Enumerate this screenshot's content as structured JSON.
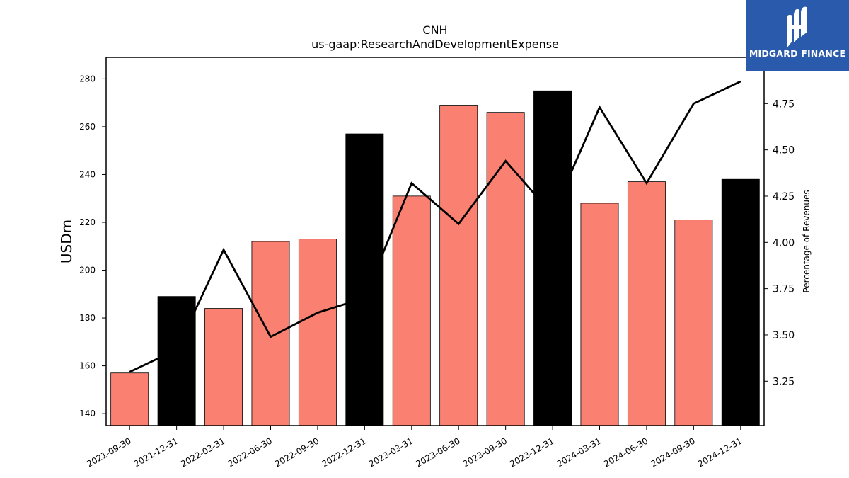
{
  "chart_data": {
    "type": "bar",
    "title": "CNH",
    "subtitle": "us-gaap:ResearchAndDevelopmentExpense",
    "ylabel": "USDm",
    "y2label": "Percentage of Revenues",
    "categories": [
      "2021-09-30",
      "2021-12-31",
      "2022-03-31",
      "2022-06-30",
      "2022-09-30",
      "2022-12-31",
      "2023-03-31",
      "2023-06-30",
      "2023-09-30",
      "2023-12-31",
      "2024-03-31",
      "2024-06-30",
      "2024-09-30",
      "2024-12-31"
    ],
    "values": [
      157,
      189,
      184,
      212,
      213,
      257,
      231,
      269,
      266,
      275,
      228,
      237,
      221,
      238
    ],
    "bar_colors": [
      "#fa8072",
      "#000000",
      "#fa8072",
      "#fa8072",
      "#fa8072",
      "#000000",
      "#fa8072",
      "#fa8072",
      "#fa8072",
      "#000000",
      "#fa8072",
      "#fa8072",
      "#fa8072",
      "#000000"
    ],
    "line_values": [
      3.3,
      3.42,
      3.96,
      3.49,
      3.62,
      3.7,
      4.32,
      4.1,
      4.44,
      4.15,
      4.73,
      4.32,
      4.75,
      4.87
    ],
    "ylim": [
      135,
      289
    ],
    "y2lim": [
      3.01,
      5.0
    ],
    "yticks": [
      140,
      160,
      180,
      200,
      220,
      240,
      260,
      280
    ],
    "y2ticks": [
      "3.25",
      "3.50",
      "3.75",
      "4.00",
      "4.25",
      "4.50",
      "4.75"
    ],
    "grid": false
  },
  "logo": {
    "text": "MIDGARD FINANCE"
  }
}
